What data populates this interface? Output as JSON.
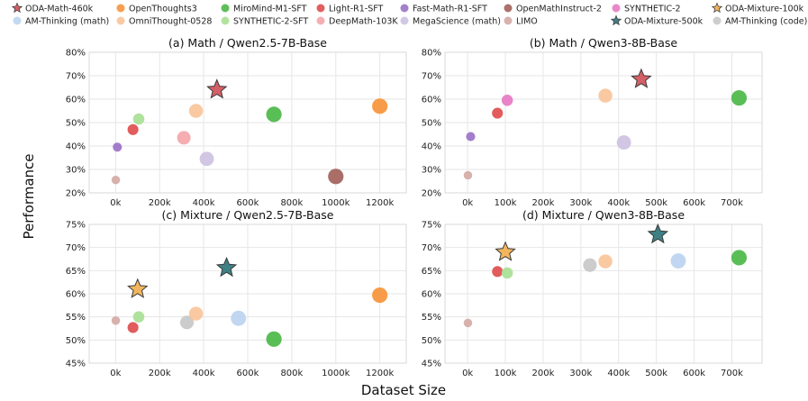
{
  "figure": {
    "xlabel": "Dataset Size",
    "ylabel": "Performance"
  },
  "legend": [
    {
      "label": "ODA-Math-460k",
      "color": "#d45f66",
      "marker": "star"
    },
    {
      "label": "OpenThoughts3",
      "color": "#f7943b",
      "marker": "circle"
    },
    {
      "label": "MiroMind-M1-SFT",
      "color": "#4cb848",
      "marker": "circle"
    },
    {
      "label": "Light-R1-SFT",
      "color": "#df4e4f",
      "marker": "circle"
    },
    {
      "label": "Fast-Math-R1-SFT",
      "color": "#9b72c8",
      "marker": "circle"
    },
    {
      "label": "OpenMathInstruct-2",
      "color": "#a2625a",
      "marker": "circle"
    },
    {
      "label": "SYNTHETIC-2",
      "color": "#e77ac3",
      "marker": "circle"
    },
    {
      "label": "ODA-Mixture-100k",
      "color": "#f2b55e",
      "marker": "star"
    },
    {
      "label": "AM-Thinking (math)",
      "color": "#bcd4f0",
      "marker": "circle"
    },
    {
      "label": "OmniThought-0528",
      "color": "#f8c49a",
      "marker": "circle"
    },
    {
      "label": "SYNTHETIC-2-SFT",
      "color": "#a8e095",
      "marker": "circle"
    },
    {
      "label": "DeepMath-103K",
      "color": "#f4a6ab",
      "marker": "circle"
    },
    {
      "label": "MegaScience (math)",
      "color": "#cdc2e2",
      "marker": "circle"
    },
    {
      "label": "LIMO",
      "color": "#d4aaa4",
      "marker": "circle"
    },
    {
      "label": "ODA-Mixture-500k",
      "color": "#3e8084",
      "marker": "star"
    },
    {
      "label": "AM-Thinking (code)",
      "color": "#c8c8c8",
      "marker": "circle"
    }
  ],
  "chart_data": [
    {
      "type": "scatter",
      "title": "(a) Math / Qwen2.5-7B-Base",
      "xlim": [
        -120000,
        1320000
      ],
      "ylim": [
        20,
        80
      ],
      "xticks": [
        0,
        200000,
        400000,
        600000,
        800000,
        1000000,
        1200000
      ],
      "xtick_labels": [
        "0k",
        "200k",
        "400k",
        "600k",
        "800k",
        "1000k",
        "1200k"
      ],
      "yticks": [
        20,
        30,
        40,
        50,
        60,
        70,
        80
      ],
      "ytick_labels": [
        "20%",
        "30%",
        "40%",
        "50%",
        "60%",
        "70%",
        "80%"
      ],
      "points": [
        {
          "name": "LIMO",
          "x": 800,
          "y": 25.5
        },
        {
          "name": "Fast-Math-R1-SFT",
          "x": 8000,
          "y": 39.5
        },
        {
          "name": "Light-R1-SFT",
          "x": 79000,
          "y": 47
        },
        {
          "name": "SYNTHETIC-2-SFT",
          "x": 105000,
          "y": 51.5
        },
        {
          "name": "DeepMath-103K",
          "x": 310000,
          "y": 43.5
        },
        {
          "name": "OmniThought-0528",
          "x": 365000,
          "y": 55
        },
        {
          "name": "MegaScience (math)",
          "x": 414000,
          "y": 34.5
        },
        {
          "name": "ODA-Math-460k",
          "x": 460000,
          "y": 64
        },
        {
          "name": "MiroMind-M1-SFT",
          "x": 719000,
          "y": 53.5
        },
        {
          "name": "OpenMathInstruct-2",
          "x": 1000000,
          "y": 27
        },
        {
          "name": "OpenThoughts3",
          "x": 1200000,
          "y": 57
        }
      ]
    },
    {
      "type": "scatter",
      "title": "(b) Math / Qwen3-8B-Base",
      "xlim": [
        -60000,
        780000
      ],
      "ylim": [
        20,
        80
      ],
      "xticks": [
        0,
        100000,
        200000,
        300000,
        400000,
        500000,
        600000,
        700000
      ],
      "xtick_labels": [
        "0k",
        "100k",
        "200k",
        "300k",
        "400k",
        "500k",
        "600k",
        "700k"
      ],
      "yticks": [
        20,
        30,
        40,
        50,
        60,
        70,
        80
      ],
      "ytick_labels": [
        "20%",
        "30%",
        "40%",
        "50%",
        "60%",
        "70%",
        "80%"
      ],
      "points": [
        {
          "name": "LIMO",
          "x": 800,
          "y": 27.5
        },
        {
          "name": "Fast-Math-R1-SFT",
          "x": 8000,
          "y": 44
        },
        {
          "name": "Light-R1-SFT",
          "x": 79000,
          "y": 54
        },
        {
          "name": "SYNTHETIC-2",
          "x": 105000,
          "y": 59.5
        },
        {
          "name": "OmniThought-0528",
          "x": 365000,
          "y": 61.5
        },
        {
          "name": "MegaScience (math)",
          "x": 414000,
          "y": 41.5
        },
        {
          "name": "ODA-Math-460k",
          "x": 460000,
          "y": 68.5
        },
        {
          "name": "MiroMind-M1-SFT",
          "x": 719000,
          "y": 60.5
        }
      ]
    },
    {
      "type": "scatter",
      "title": "(c) Mixture / Qwen2.5-7B-Base",
      "xlim": [
        -120000,
        1320000
      ],
      "ylim": [
        45,
        75
      ],
      "xticks": [
        0,
        200000,
        400000,
        600000,
        800000,
        1000000,
        1200000
      ],
      "xtick_labels": [
        "0k",
        "200k",
        "400k",
        "600k",
        "800k",
        "1000k",
        "1200k"
      ],
      "yticks": [
        45,
        50,
        55,
        60,
        65,
        70,
        75
      ],
      "ytick_labels": [
        "45%",
        "50%",
        "55%",
        "60%",
        "65%",
        "70%",
        "75%"
      ],
      "points": [
        {
          "name": "LIMO",
          "x": 800,
          "y": 54.2
        },
        {
          "name": "Light-R1-SFT",
          "x": 79000,
          "y": 52.7
        },
        {
          "name": "ODA-Mixture-100k",
          "x": 100000,
          "y": 61
        },
        {
          "name": "SYNTHETIC-2-SFT",
          "x": 105000,
          "y": 55
        },
        {
          "name": "AM-Thinking (code)",
          "x": 324000,
          "y": 53.8
        },
        {
          "name": "OmniThought-0528",
          "x": 365000,
          "y": 55.7
        },
        {
          "name": "ODA-Mixture-500k",
          "x": 504000,
          "y": 65.6
        },
        {
          "name": "AM-Thinking (math)",
          "x": 558000,
          "y": 54.7
        },
        {
          "name": "MiroMind-M1-SFT",
          "x": 719000,
          "y": 50.2
        },
        {
          "name": "OpenThoughts3",
          "x": 1200000,
          "y": 59.7
        }
      ]
    },
    {
      "type": "scatter",
      "title": "(d) Mixture / Qwen3-8B-Base",
      "xlim": [
        -60000,
        780000
      ],
      "ylim": [
        45,
        75
      ],
      "xticks": [
        0,
        100000,
        200000,
        300000,
        400000,
        500000,
        600000,
        700000
      ],
      "xtick_labels": [
        "0k",
        "100k",
        "200k",
        "300k",
        "400k",
        "500k",
        "600k",
        "700k"
      ],
      "yticks": [
        45,
        50,
        55,
        60,
        65,
        70,
        75
      ],
      "ytick_labels": [
        "45%",
        "50%",
        "55%",
        "60%",
        "65%",
        "70%",
        "75%"
      ],
      "points": [
        {
          "name": "LIMO",
          "x": 800,
          "y": 53.7
        },
        {
          "name": "Light-R1-SFT",
          "x": 79000,
          "y": 64.8
        },
        {
          "name": "ODA-Mixture-100k",
          "x": 100000,
          "y": 69
        },
        {
          "name": "SYNTHETIC-2-SFT",
          "x": 105000,
          "y": 64.5
        },
        {
          "name": "AM-Thinking (code)",
          "x": 324000,
          "y": 66.2
        },
        {
          "name": "OmniThought-0528",
          "x": 365000,
          "y": 67
        },
        {
          "name": "ODA-Mixture-500k",
          "x": 504000,
          "y": 72.8
        },
        {
          "name": "AM-Thinking (math)",
          "x": 558000,
          "y": 67.1
        },
        {
          "name": "MiroMind-M1-SFT",
          "x": 719000,
          "y": 67.8
        }
      ]
    }
  ]
}
